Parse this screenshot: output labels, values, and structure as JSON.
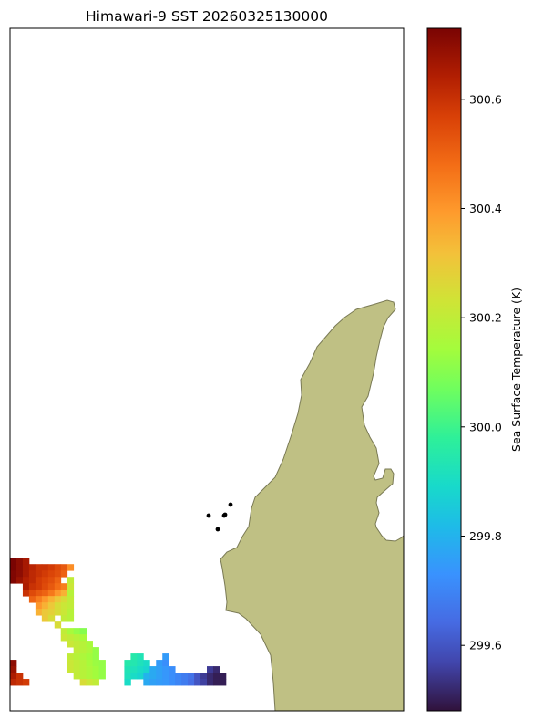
{
  "title": "Himawari-9 SST 20260325130000",
  "colorbar": {
    "label": "Sea Surface Temperature (K)",
    "min": 299.48,
    "max": 300.73,
    "ticks": [
      "299.6",
      "299.8",
      "300.0",
      "300.2",
      "300.4",
      "300.6"
    ],
    "colormap": "turbo"
  },
  "chart_data": {
    "type": "heatmap",
    "title": "Himawari-9 SST 20260325130000",
    "colorbar_label": "Sea Surface Temperature (K)",
    "value_range": [
      299.48,
      300.73
    ],
    "colorbar_ticks": [
      299.6,
      299.8,
      300.0,
      300.2,
      300.4,
      300.6
    ],
    "land_color": "#bfc084",
    "island_points": 5,
    "pixel_grid": {
      "columns": 62,
      "rows": 107
    },
    "pixels": [
      [
        0,
        83,
        300.73
      ],
      [
        1,
        83,
        300.7
      ],
      [
        2,
        83,
        300.66
      ],
      [
        0,
        84,
        300.73
      ],
      [
        1,
        84,
        300.7
      ],
      [
        2,
        84,
        300.66
      ],
      [
        3,
        84,
        300.63
      ],
      [
        4,
        84,
        300.6
      ],
      [
        5,
        84,
        300.6
      ],
      [
        6,
        84,
        300.58
      ],
      [
        7,
        84,
        300.55
      ],
      [
        8,
        84,
        300.52
      ],
      [
        9,
        84,
        300.42
      ],
      [
        0,
        85,
        300.72
      ],
      [
        1,
        85,
        300.7
      ],
      [
        2,
        85,
        300.66
      ],
      [
        3,
        85,
        300.62
      ],
      [
        4,
        85,
        300.6
      ],
      [
        5,
        85,
        300.58
      ],
      [
        6,
        85,
        300.56
      ],
      [
        7,
        85,
        300.54
      ],
      [
        8,
        85,
        300.5
      ],
      [
        0,
        86,
        300.72
      ],
      [
        1,
        86,
        300.68
      ],
      [
        2,
        86,
        300.64
      ],
      [
        3,
        86,
        300.62
      ],
      [
        4,
        86,
        300.58
      ],
      [
        5,
        86,
        300.56
      ],
      [
        6,
        86,
        300.54
      ],
      [
        7,
        86,
        300.5
      ],
      [
        9,
        86,
        300.2
      ],
      [
        2,
        87,
        300.65
      ],
      [
        3,
        87,
        300.6
      ],
      [
        4,
        87,
        300.58
      ],
      [
        5,
        87,
        300.55
      ],
      [
        6,
        87,
        300.52
      ],
      [
        7,
        87,
        300.48
      ],
      [
        8,
        87,
        300.45
      ],
      [
        9,
        87,
        300.22
      ],
      [
        2,
        88,
        300.6
      ],
      [
        3,
        88,
        300.55
      ],
      [
        4,
        88,
        300.52
      ],
      [
        5,
        88,
        300.5
      ],
      [
        6,
        88,
        300.46
      ],
      [
        7,
        88,
        300.4
      ],
      [
        8,
        88,
        300.35
      ],
      [
        9,
        88,
        300.18
      ],
      [
        3,
        89,
        300.5
      ],
      [
        4,
        89,
        300.45
      ],
      [
        5,
        89,
        300.4
      ],
      [
        6,
        89,
        300.35
      ],
      [
        7,
        89,
        300.3
      ],
      [
        8,
        89,
        300.25
      ],
      [
        9,
        89,
        300.2
      ],
      [
        4,
        90,
        300.4
      ],
      [
        5,
        90,
        300.35
      ],
      [
        6,
        90,
        300.3
      ],
      [
        7,
        90,
        300.25
      ],
      [
        8,
        90,
        300.22
      ],
      [
        9,
        90,
        300.2
      ],
      [
        4,
        91,
        300.35
      ],
      [
        5,
        91,
        300.3
      ],
      [
        6,
        91,
        300.28
      ],
      [
        7,
        91,
        300.25
      ],
      [
        8,
        91,
        300.22
      ],
      [
        9,
        91,
        300.18
      ],
      [
        5,
        92,
        300.3
      ],
      [
        6,
        92,
        300.25
      ],
      [
        8,
        92,
        300.2
      ],
      [
        9,
        92,
        300.18
      ],
      [
        7,
        93,
        300.25
      ],
      [
        8,
        94,
        300.2
      ],
      [
        9,
        94,
        300.15
      ],
      [
        10,
        94,
        300.12
      ],
      [
        11,
        94,
        300.1
      ],
      [
        8,
        95,
        300.22
      ],
      [
        9,
        95,
        300.2
      ],
      [
        10,
        95,
        300.18
      ],
      [
        11,
        95,
        300.15
      ],
      [
        9,
        96,
        300.22
      ],
      [
        10,
        96,
        300.2
      ],
      [
        11,
        96,
        300.18
      ],
      [
        12,
        96,
        300.15
      ],
      [
        10,
        97,
        300.2
      ],
      [
        11,
        97,
        300.18
      ],
      [
        12,
        97,
        300.16
      ],
      [
        13,
        97,
        300.12
      ],
      [
        9,
        98,
        300.2
      ],
      [
        10,
        98,
        300.18
      ],
      [
        11,
        98,
        300.16
      ],
      [
        12,
        98,
        300.14
      ],
      [
        13,
        98,
        300.12
      ],
      [
        0,
        99,
        300.7
      ],
      [
        9,
        99,
        300.22
      ],
      [
        10,
        99,
        300.2
      ],
      [
        11,
        99,
        300.18
      ],
      [
        12,
        99,
        300.15
      ],
      [
        13,
        99,
        300.13
      ],
      [
        14,
        99,
        300.12
      ],
      [
        0,
        100,
        300.68
      ],
      [
        9,
        100,
        300.22
      ],
      [
        10,
        100,
        300.2
      ],
      [
        11,
        100,
        300.18
      ],
      [
        12,
        100,
        300.16
      ],
      [
        13,
        100,
        300.14
      ],
      [
        14,
        100,
        300.12
      ],
      [
        0,
        101,
        300.65
      ],
      [
        1,
        101,
        300.6
      ],
      [
        10,
        101,
        300.2
      ],
      [
        11,
        101,
        300.18
      ],
      [
        12,
        101,
        300.16
      ],
      [
        13,
        101,
        300.14
      ],
      [
        14,
        101,
        300.12
      ],
      [
        0,
        102,
        300.62
      ],
      [
        1,
        102,
        300.6
      ],
      [
        2,
        102,
        300.58
      ],
      [
        11,
        102,
        300.25
      ],
      [
        12,
        102,
        300.22
      ],
      [
        13,
        102,
        300.2
      ],
      [
        19,
        98,
        299.95
      ],
      [
        20,
        98,
        299.93
      ],
      [
        24,
        98,
        299.75
      ],
      [
        18,
        99,
        299.95
      ],
      [
        19,
        99,
        299.94
      ],
      [
        20,
        99,
        299.92
      ],
      [
        21,
        99,
        299.9
      ],
      [
        23,
        99,
        299.75
      ],
      [
        24,
        99,
        299.72
      ],
      [
        18,
        100,
        299.93
      ],
      [
        19,
        100,
        299.92
      ],
      [
        20,
        100,
        299.9
      ],
      [
        21,
        100,
        299.88
      ],
      [
        22,
        100,
        299.78
      ],
      [
        23,
        100,
        299.76
      ],
      [
        24,
        100,
        299.74
      ],
      [
        25,
        100,
        299.72
      ],
      [
        31,
        100,
        299.55
      ],
      [
        32,
        100,
        299.52
      ],
      [
        18,
        101,
        299.92
      ],
      [
        19,
        101,
        299.9
      ],
      [
        20,
        101,
        299.88
      ],
      [
        21,
        101,
        299.8
      ],
      [
        22,
        101,
        299.78
      ],
      [
        23,
        101,
        299.76
      ],
      [
        24,
        101,
        299.74
      ],
      [
        25,
        101,
        299.72
      ],
      [
        26,
        101,
        299.7
      ],
      [
        27,
        101,
        299.68
      ],
      [
        28,
        101,
        299.66
      ],
      [
        29,
        101,
        299.6
      ],
      [
        30,
        101,
        299.55
      ],
      [
        31,
        101,
        299.52
      ],
      [
        32,
        101,
        299.5
      ],
      [
        33,
        101,
        299.5
      ],
      [
        18,
        102,
        299.9
      ],
      [
        21,
        102,
        299.78
      ],
      [
        22,
        102,
        299.76
      ],
      [
        23,
        102,
        299.75
      ],
      [
        24,
        102,
        299.74
      ],
      [
        25,
        102,
        299.72
      ],
      [
        26,
        102,
        299.7
      ],
      [
        27,
        102,
        299.68
      ],
      [
        28,
        102,
        299.65
      ],
      [
        29,
        102,
        299.6
      ],
      [
        30,
        102,
        299.56
      ],
      [
        31,
        102,
        299.52
      ],
      [
        32,
        102,
        299.5
      ],
      [
        33,
        102,
        299.5
      ]
    ]
  }
}
